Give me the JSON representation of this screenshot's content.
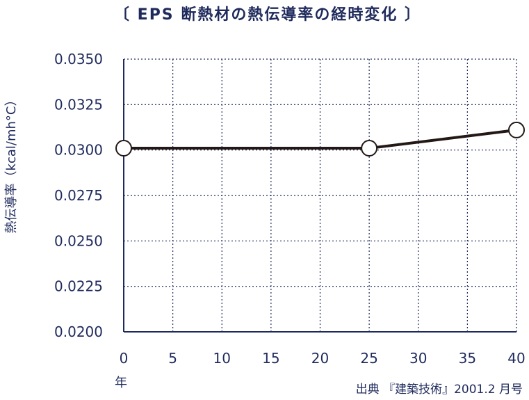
{
  "chart_data": {
    "type": "line",
    "title": "〔 EPS 断熱材の熱伝導率の経時変化 〕",
    "ylabel": "熱伝導率（kcal/mh°C）",
    "x_unit": "年",
    "source": "出典 『建築技術』2001.2 月号",
    "xlim": [
      0,
      40
    ],
    "ylim": [
      0.02,
      0.035
    ],
    "x_ticks": [
      0,
      5,
      10,
      15,
      20,
      25,
      30,
      35,
      40
    ],
    "y_ticks": [
      0.02,
      0.0225,
      0.025,
      0.0275,
      0.03,
      0.0325,
      0.035
    ],
    "y_tick_labels": [
      "0.0200",
      "0.0225",
      "0.0250",
      "0.0275",
      "0.0300",
      "0.0325",
      "0.0350"
    ],
    "grid": true,
    "series": [
      {
        "x": [
          0,
          25,
          40
        ],
        "y": [
          0.0301,
          0.0301,
          0.0311
        ]
      }
    ],
    "colors": {
      "text": "#1f2a5c",
      "grid": "#1f2a5c",
      "line": "#231815",
      "marker_fill": "#ffffff"
    }
  }
}
